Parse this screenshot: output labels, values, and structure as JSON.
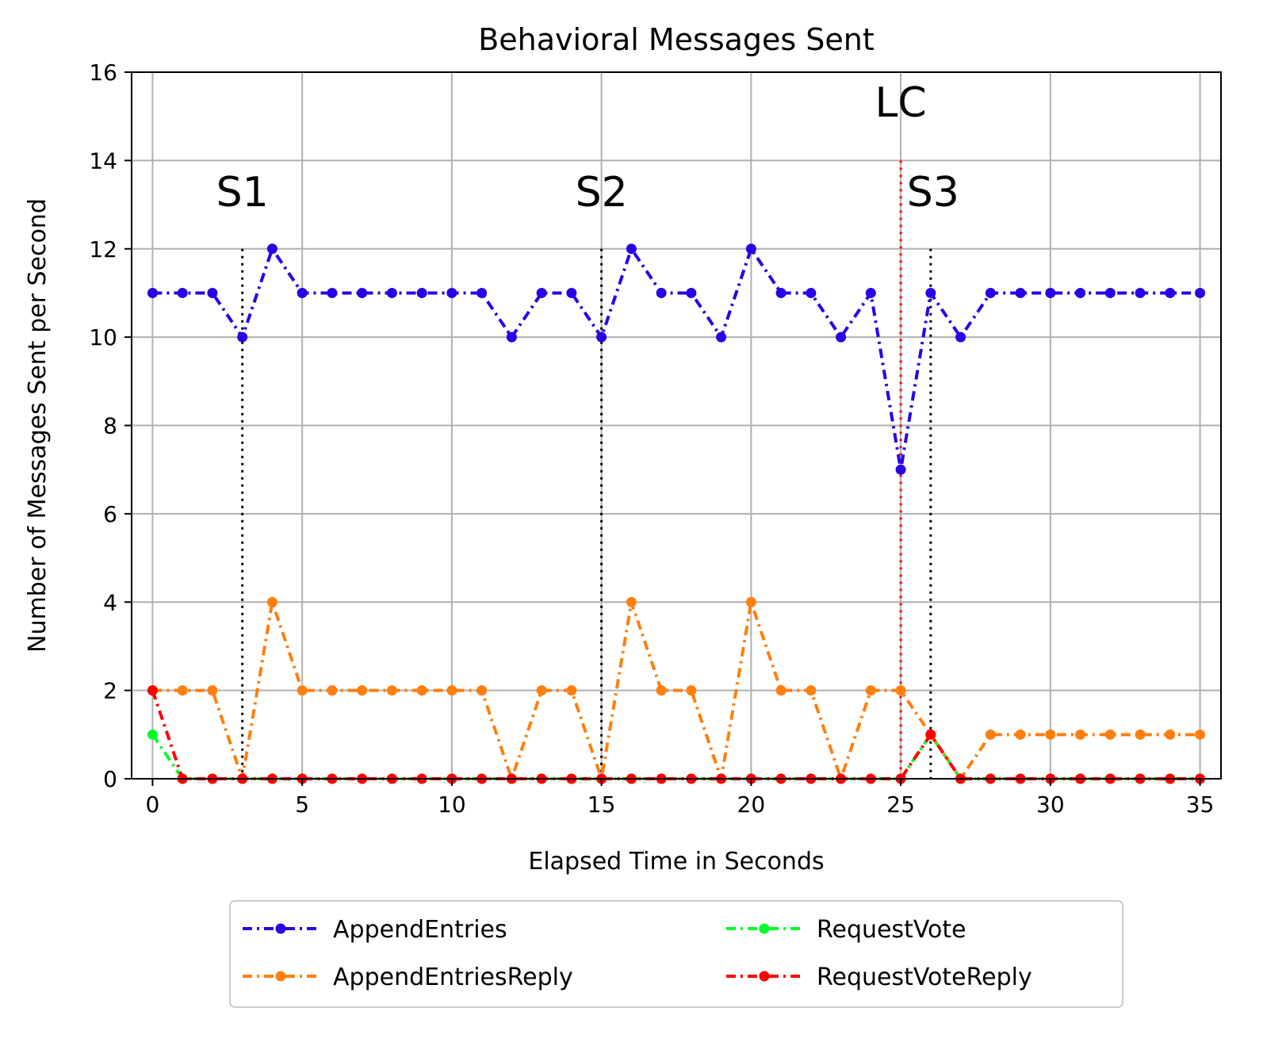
{
  "chart_data": {
    "type": "line",
    "title": "Behavioral Messages Sent",
    "xlabel": "Elapsed Time in Seconds",
    "ylabel": "Number of Messages Sent per Second",
    "xlim": [
      -0.7,
      35.7
    ],
    "ylim": [
      0,
      16
    ],
    "xticks": [
      0,
      5,
      10,
      15,
      20,
      25,
      30,
      35
    ],
    "yticks": [
      0,
      2,
      4,
      6,
      8,
      10,
      12,
      14,
      16
    ],
    "grid": true,
    "legend_position": "bottom-center, below the axes, 2 columns",
    "x": [
      0,
      1,
      2,
      3,
      4,
      5,
      6,
      7,
      8,
      9,
      10,
      11,
      12,
      13,
      14,
      15,
      16,
      17,
      18,
      19,
      20,
      21,
      22,
      23,
      24,
      25,
      26,
      27,
      28,
      29,
      30,
      31,
      32,
      33,
      34,
      35
    ],
    "series": [
      {
        "name": "AppendEntries",
        "color": "#2a00e6",
        "dash": "12,6,3,6",
        "values": [
          11,
          11,
          11,
          10,
          12,
          11,
          11,
          11,
          11,
          11,
          11,
          11,
          10,
          11,
          11,
          10,
          12,
          11,
          11,
          10,
          12,
          11,
          11,
          10,
          11,
          7,
          11,
          10,
          11,
          11,
          11,
          11,
          11,
          11,
          11,
          11
        ]
      },
      {
        "name": "AppendEntriesReply",
        "color": "#ff7f0e",
        "dash": "12,6,3,6",
        "values": [
          2,
          2,
          2,
          0,
          4,
          2,
          2,
          2,
          2,
          2,
          2,
          2,
          0,
          2,
          2,
          0,
          4,
          2,
          2,
          0,
          4,
          2,
          2,
          0,
          2,
          2,
          1,
          0,
          1,
          1,
          1,
          1,
          1,
          1,
          1,
          1
        ]
      },
      {
        "name": "RequestVote",
        "color": "#00ff2a",
        "dash": "12,6,3,6",
        "values": [
          1,
          0,
          0,
          0,
          0,
          0,
          0,
          0,
          0,
          0,
          0,
          0,
          0,
          0,
          0,
          0,
          0,
          0,
          0,
          0,
          0,
          0,
          0,
          0,
          0,
          0,
          1,
          0,
          0,
          0,
          0,
          0,
          0,
          0,
          0,
          0
        ]
      },
      {
        "name": "RequestVoteReply",
        "color": "#ff0000",
        "dash": "12,6,3,6",
        "values": [
          2,
          0,
          0,
          0,
          0,
          0,
          0,
          0,
          0,
          0,
          0,
          0,
          0,
          0,
          0,
          0,
          0,
          0,
          0,
          0,
          0,
          0,
          0,
          0,
          0,
          0,
          1,
          0,
          0,
          0,
          0,
          0,
          0,
          0,
          0,
          0
        ]
      }
    ],
    "annotations": [
      {
        "label": "S1",
        "x": 3,
        "line_color": "#000000",
        "line_top": 12
      },
      {
        "label": "S2",
        "x": 15,
        "line_color": "#000000",
        "line_top": 12
      },
      {
        "label": "LC",
        "x": 25,
        "line_color": "#ff0000",
        "line_top": 14
      },
      {
        "label": "S3",
        "x": 26,
        "line_color": "#000000",
        "line_top": 12
      }
    ]
  }
}
